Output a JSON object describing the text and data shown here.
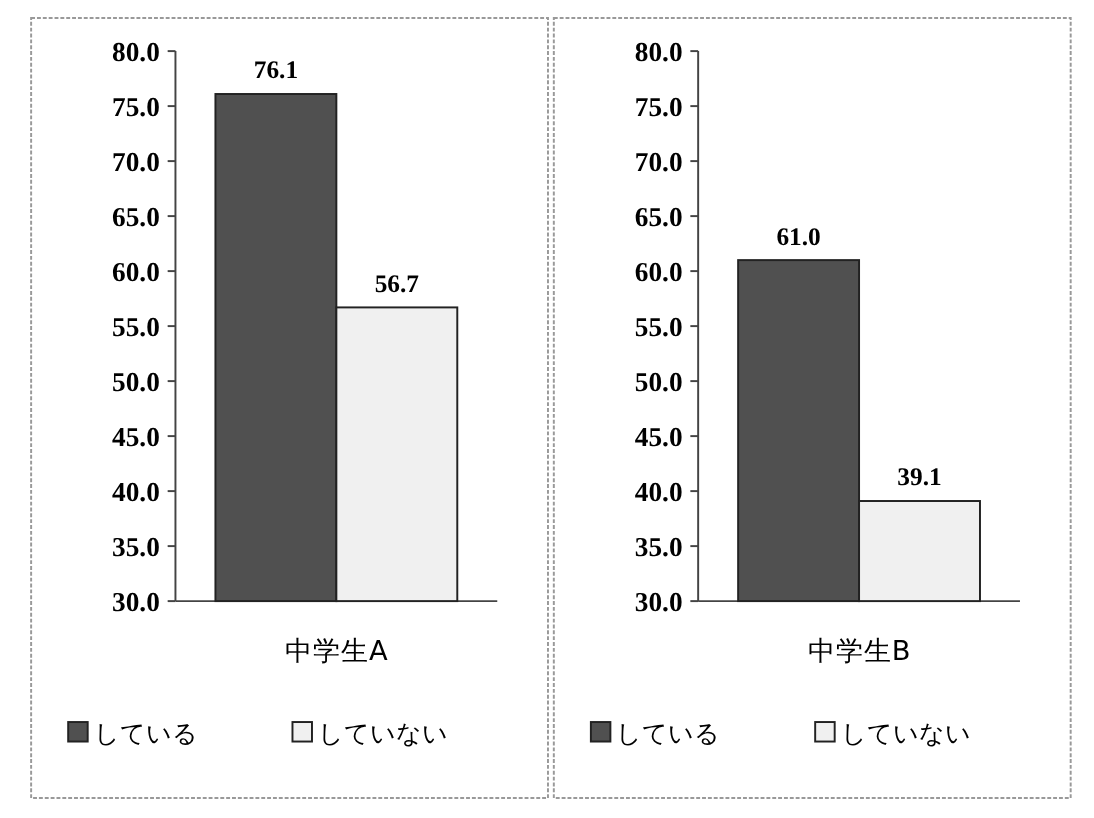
{
  "chart_data": [
    {
      "type": "bar",
      "categories": [
        "中学生A"
      ],
      "ylim": [
        30,
        80
      ],
      "yticks": [
        {
          "value": 30,
          "label": "30.0"
        },
        {
          "value": 35,
          "label": "35.0"
        },
        {
          "value": 40,
          "label": "40.0"
        },
        {
          "value": 45,
          "label": "45.0"
        },
        {
          "value": 50,
          "label": "50.0"
        },
        {
          "value": 55,
          "label": "55.0"
        },
        {
          "value": 60,
          "label": "60.0"
        },
        {
          "value": 65,
          "label": "65.0"
        },
        {
          "value": 70,
          "label": "70.0"
        },
        {
          "value": 75,
          "label": "75.0"
        },
        {
          "value": 80,
          "label": "80.0"
        }
      ],
      "legend": "bottom",
      "series": [
        {
          "name": "している",
          "color": "#505050",
          "values": [
            76.1
          ],
          "value_labels": [
            "76.1"
          ]
        },
        {
          "name": "していない",
          "color": "#f0f0f0",
          "values": [
            56.7
          ],
          "value_labels": [
            "56.7"
          ]
        }
      ]
    },
    {
      "type": "bar",
      "categories": [
        "中学生B"
      ],
      "ylim": [
        30,
        80
      ],
      "yticks": [
        {
          "value": 30,
          "label": "30.0"
        },
        {
          "value": 35,
          "label": "35.0"
        },
        {
          "value": 40,
          "label": "40.0"
        },
        {
          "value": 45,
          "label": "45.0"
        },
        {
          "value": 50,
          "label": "50.0"
        },
        {
          "value": 55,
          "label": "55.0"
        },
        {
          "value": 60,
          "label": "60.0"
        },
        {
          "value": 65,
          "label": "65.0"
        },
        {
          "value": 70,
          "label": "70.0"
        },
        {
          "value": 75,
          "label": "75.0"
        },
        {
          "value": 80,
          "label": "80.0"
        }
      ],
      "legend": "bottom",
      "series": [
        {
          "name": "している",
          "color": "#505050",
          "values": [
            61.0
          ],
          "value_labels": [
            "61.0"
          ]
        },
        {
          "name": "していない",
          "color": "#f0f0f0",
          "values": [
            39.1
          ],
          "value_labels": [
            "39.1"
          ]
        }
      ]
    }
  ]
}
